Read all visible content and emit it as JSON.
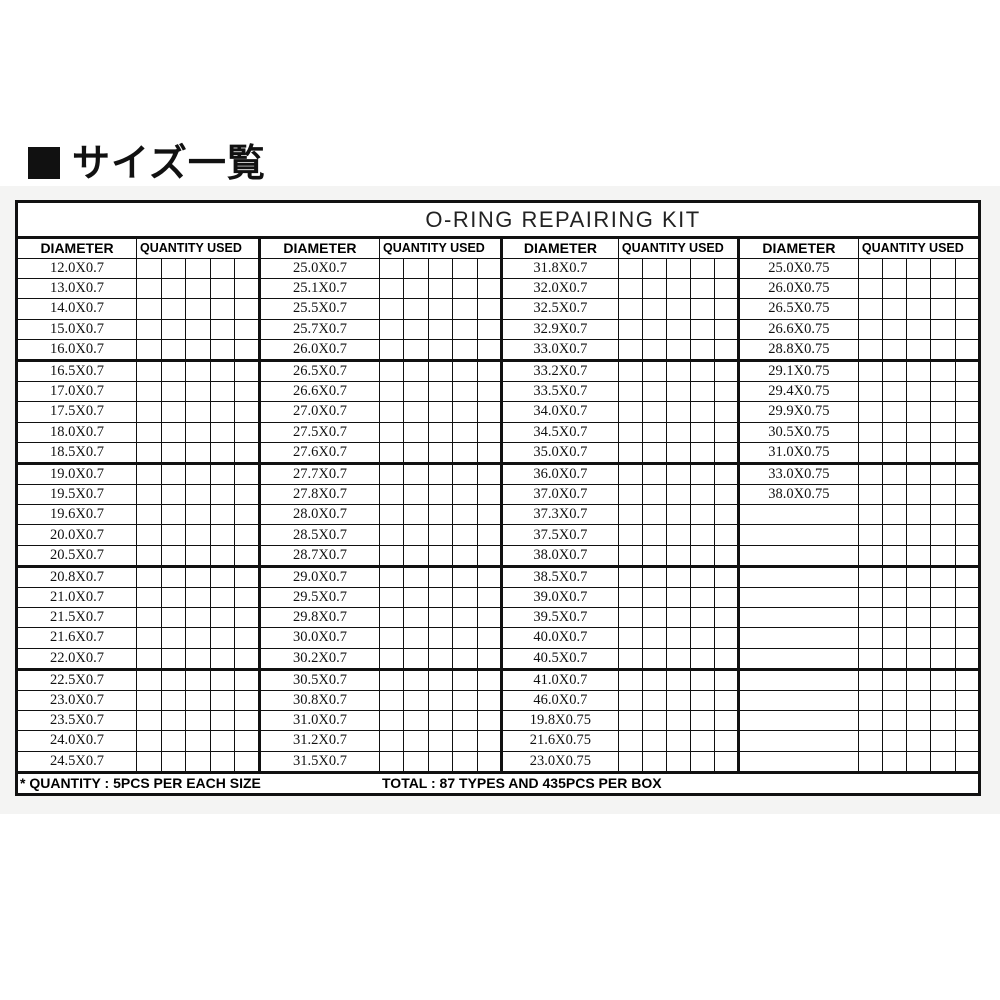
{
  "heading": "サイズ一覧",
  "title": "O-RING  REPAIRING  KIT",
  "header": {
    "diameter": "DIAMETER",
    "quantity": "QUANTITY USED"
  },
  "columns": [
    [
      "12.0X0.7",
      "13.0X0.7",
      "14.0X0.7",
      "15.0X0.7",
      "16.0X0.7",
      "16.5X0.7",
      "17.0X0.7",
      "17.5X0.7",
      "18.0X0.7",
      "18.5X0.7",
      "19.0X0.7",
      "19.5X0.7",
      "19.6X0.7",
      "20.0X0.7",
      "20.5X0.7",
      "20.8X0.7",
      "21.0X0.7",
      "21.5X0.7",
      "21.6X0.7",
      "22.0X0.7",
      "22.5X0.7",
      "23.0X0.7",
      "23.5X0.7",
      "24.0X0.7",
      "24.5X0.7"
    ],
    [
      "25.0X0.7",
      "25.1X0.7",
      "25.5X0.7",
      "25.7X0.7",
      "26.0X0.7",
      "26.5X0.7",
      "26.6X0.7",
      "27.0X0.7",
      "27.5X0.7",
      "27.6X0.7",
      "27.7X0.7",
      "27.8X0.7",
      "28.0X0.7",
      "28.5X0.7",
      "28.7X0.7",
      "29.0X0.7",
      "29.5X0.7",
      "29.8X0.7",
      "30.0X0.7",
      "30.2X0.7",
      "30.5X0.7",
      "30.8X0.7",
      "31.0X0.7",
      "31.2X0.7",
      "31.5X0.7"
    ],
    [
      "31.8X0.7",
      "32.0X0.7",
      "32.5X0.7",
      "32.9X0.7",
      "33.0X0.7",
      "33.2X0.7",
      "33.5X0.7",
      "34.0X0.7",
      "34.5X0.7",
      "35.0X0.7",
      "36.0X0.7",
      "37.0X0.7",
      "37.3X0.7",
      "37.5X0.7",
      "38.0X0.7",
      "38.5X0.7",
      "39.0X0.7",
      "39.5X0.7",
      "40.0X0.7",
      "40.5X0.7",
      "41.0X0.7",
      "46.0X0.7",
      "19.8X0.75",
      "21.6X0.75",
      "23.0X0.75"
    ],
    [
      "25.0X0.75",
      "26.0X0.75",
      "26.5X0.75",
      "26.6X0.75",
      "28.8X0.75",
      "29.1X0.75",
      "29.4X0.75",
      "29.9X0.75",
      "30.5X0.75",
      "31.0X0.75",
      "33.0X0.75",
      "38.0X0.75",
      "",
      "",
      "",
      "",
      "",
      "",
      "",
      "",
      "",
      "",
      "",
      "",
      ""
    ]
  ],
  "footer": {
    "quantity_note": "* QUANTITY : 5PCS PER EACH SIZE",
    "total": "TOTAL : 87 TYPES AND 435PCS PER BOX"
  }
}
